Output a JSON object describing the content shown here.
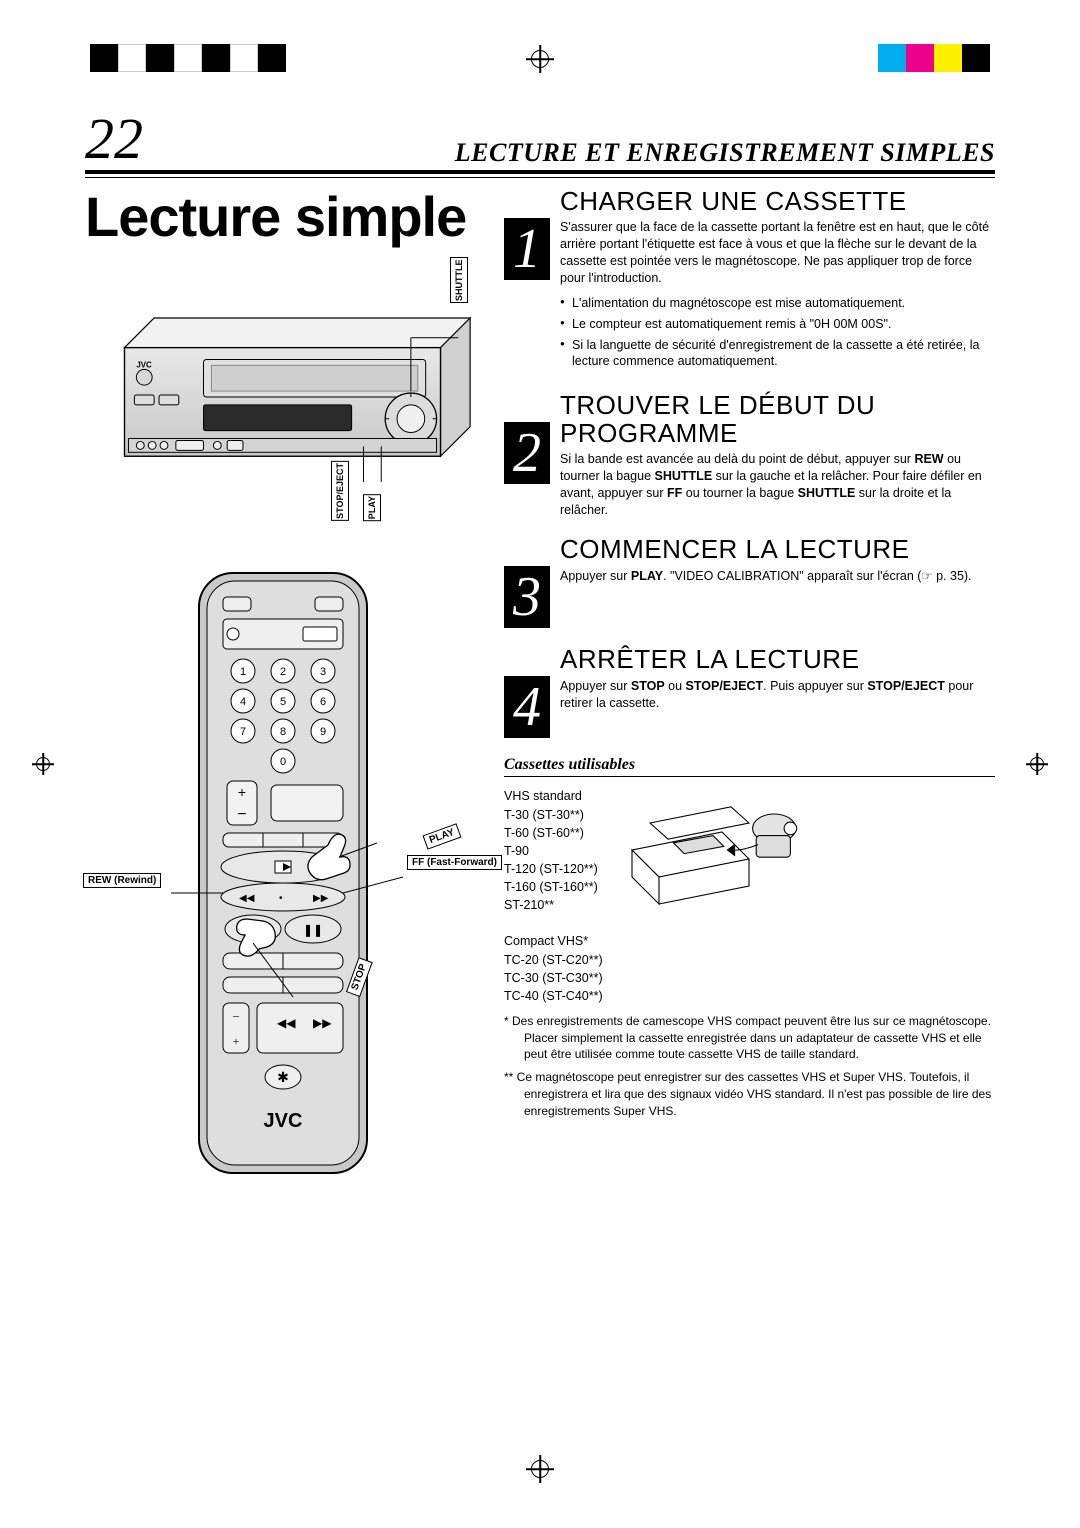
{
  "print_marks": {
    "left_bars": [
      "#000000",
      "#ffffff",
      "#000000",
      "#ffffff",
      "#000000",
      "#ffffff",
      "#000000"
    ],
    "right_bars": [
      "#00aeef",
      "#ec008c",
      "#fff200",
      "#000000"
    ]
  },
  "header": {
    "page_number": "22",
    "section_title": "LECTURE ET ENREGISTREMENT SIMPLES"
  },
  "page_title": "Lecture simple",
  "vcr_labels": {
    "shuttle": "SHUTTLE",
    "stop_eject": "STOP/EJECT",
    "play": "PLAY",
    "brand": "JVC"
  },
  "remote_labels": {
    "play": "PLAY",
    "ff": "FF (Fast-Forward)",
    "rew": "REW (Rewind)",
    "stop": "STOP",
    "brand": "JVC"
  },
  "steps": [
    {
      "num": "1",
      "title": "CHARGER UNE CASSETTE",
      "text": "S'assurer que la face de la cassette portant la fenêtre est en haut, que le côté arrière portant l'étiquette est face à vous et que la flèche sur le devant de la cassette est pointée vers le magnétoscope. Ne pas appliquer trop de force pour l'introduction.",
      "bullets": [
        "L'alimentation du magnétoscope est mise automatiquement.",
        "Le compteur est automatiquement remis à \"0H 00M 00S\".",
        "Si la languette de sécurité d'enregistrement de la cassette a été retirée, la lecture commence automatiquement."
      ]
    },
    {
      "num": "2",
      "title": "TROUVER LE DÉBUT DU PROGRAMME",
      "text_html": "Si la bande est avancée au delà du point de début, appuyer sur <b>REW</b> ou tourner la bague <b>SHUTTLE</b> sur la gauche et la relâcher. Pour faire défiler en avant, appuyer sur <b>FF</b> ou tourner la bague <b>SHUTTLE</b> sur la droite et la relâcher."
    },
    {
      "num": "3",
      "title": "COMMENCER LA LECTURE",
      "text_html": "Appuyer sur <b>PLAY</b>. \"VIDEO CALIBRATION\" apparaît sur l'écran (☞ p. 35)."
    },
    {
      "num": "4",
      "title": "ARRÊTER LA LECTURE",
      "text_html": "Appuyer sur <b>STOP</b> ou <b>STOP/EJECT</b>. Puis appuyer sur <b>STOP/EJECT</b> pour retirer la cassette."
    }
  ],
  "cassettes": {
    "heading": "Cassettes utilisables",
    "vhs_title": "VHS standard",
    "vhs_list": [
      "T-30 (ST-30**)",
      "T-60 (ST-60**)",
      "T-90",
      "T-120 (ST-120**)",
      "T-160 (ST-160**)",
      "ST-210**"
    ],
    "cvhs_title": "Compact VHS*",
    "cvhs_list": [
      "TC-20 (ST-C20**)",
      "TC-30 (ST-C30**)",
      "TC-40 (ST-C40**)"
    ],
    "note1": "*   Des enregistrements de camescope VHS compact peuvent être lus sur ce magnétoscope. Placer simplement la cassette enregistrée dans un adaptateur de cassette VHS et elle peut être utilisée comme toute cassette VHS de taille standard.",
    "note2": "** Ce magnétoscope peut enregistrer sur des cassettes VHS et Super VHS. Toutefois, il enregistrera et lira que des signaux vidéo VHS standard. Il n'est pas possible de lire des enregistrements Super VHS."
  }
}
